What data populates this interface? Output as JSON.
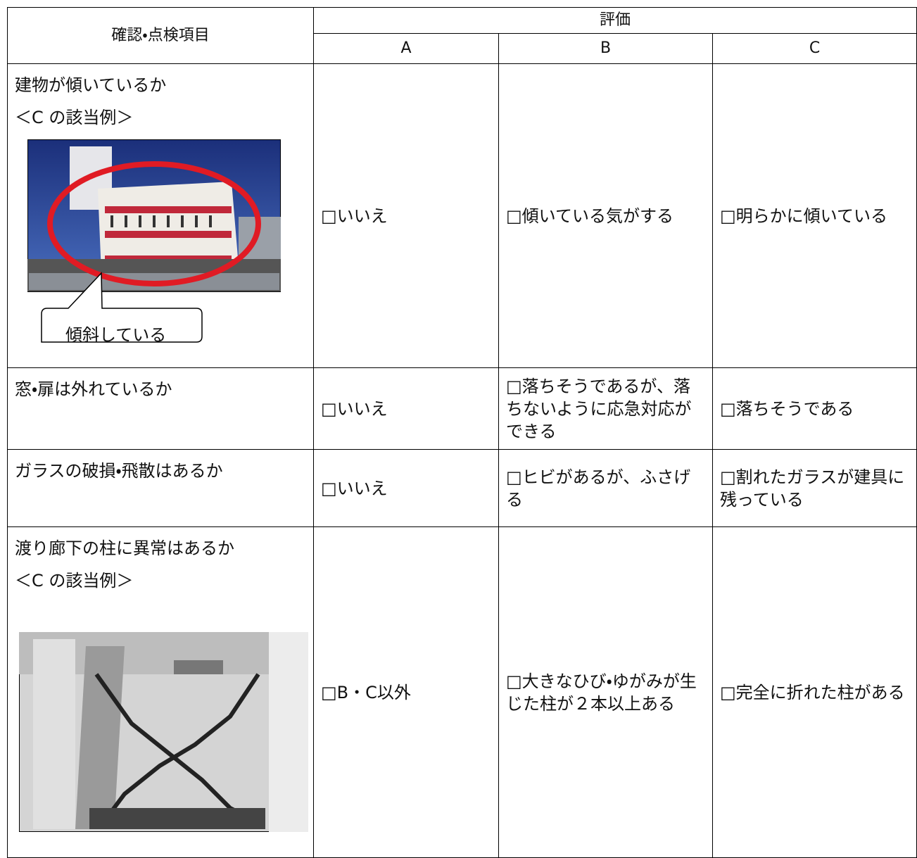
{
  "table": {
    "header": {
      "item": "確認・点検項目",
      "evaluation": "評価",
      "grades": [
        "A",
        "B",
        "C"
      ]
    },
    "rows": [
      {
        "item": "建物が傾いているか",
        "example": "＜C の該当例＞",
        "callout": "傾斜している",
        "a": "□いいえ",
        "b": "□傾いている気がする",
        "c": "□明らかに傾いている"
      },
      {
        "item": "窓・扉は外れているか",
        "a": "□いいえ",
        "b": "□落ちそうであるが、落ちないように応急対応ができる",
        "c": "□落ちそうである"
      },
      {
        "item": "ガラスの破損・飛散はあるか",
        "a": "□いいえ",
        "b": "□ヒビがあるが、ふさげる",
        "c": "□割れたガラスが建具に残っている"
      },
      {
        "item": "渡り廊下の柱に異常はあるか",
        "example": "＜C の該当例＞",
        "a": "□B・C以外",
        "b": "□大きなひび・ゆがみが生じた柱が２本以上ある",
        "c": "□完全に折れた柱がある"
      }
    ]
  }
}
